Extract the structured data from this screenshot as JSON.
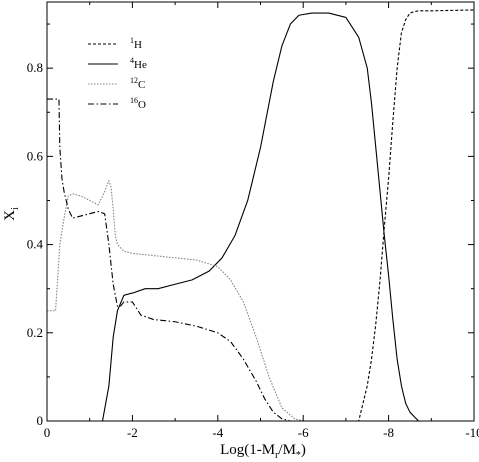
{
  "chart_data": {
    "type": "line",
    "xlabel": "Log(1-M_r/M_*)",
    "ylabel": "X_i",
    "xlim": [
      0,
      -10
    ],
    "ylim": [
      0,
      0.95
    ],
    "x_ticks": [
      0,
      -2,
      -4,
      -6,
      -8,
      -10
    ],
    "x_tick_labels": [
      "0",
      "-2",
      "-4",
      "-6",
      "-8",
      "-10"
    ],
    "y_ticks": [
      0,
      0.2,
      0.4,
      0.6,
      0.8
    ],
    "y_tick_labels": [
      "0",
      "0.2",
      "0.4",
      "0.6",
      "0.8"
    ],
    "grid": false,
    "legend_position": "top-left",
    "series": [
      {
        "name": "1H",
        "name_sup": "1",
        "name_base": "H",
        "color": "#000000",
        "dash": "3,2",
        "x": [
          0,
          -7.3,
          -7.5,
          -7.6,
          -7.7,
          -7.8,
          -7.9,
          -8.0,
          -8.1,
          -8.2,
          -8.3,
          -8.4,
          -8.5,
          -8.6,
          -8.7,
          -9.0,
          -10.0
        ],
        "y": [
          0,
          0.0,
          0.08,
          0.14,
          0.22,
          0.32,
          0.44,
          0.55,
          0.68,
          0.8,
          0.88,
          0.91,
          0.925,
          0.928,
          0.93,
          0.93,
          0.932
        ]
      },
      {
        "name": "4He",
        "name_sup": "4",
        "name_base": "He",
        "color": "#000000",
        "dash": "",
        "x": [
          -1.3,
          -1.45,
          -1.55,
          -1.65,
          -1.8,
          -2.0,
          -2.3,
          -2.6,
          -3.0,
          -3.4,
          -3.8,
          -4.1,
          -4.4,
          -4.7,
          -5.0,
          -5.3,
          -5.5,
          -5.7,
          -5.9,
          -6.2,
          -6.6,
          -7.0,
          -7.3,
          -7.5,
          -7.6,
          -7.7,
          -7.8,
          -7.9,
          -8.0,
          -8.1,
          -8.2,
          -8.3,
          -8.4,
          -8.5,
          -8.6,
          -8.7
        ],
        "y": [
          0,
          0.08,
          0.19,
          0.25,
          0.285,
          0.29,
          0.3,
          0.3,
          0.31,
          0.32,
          0.34,
          0.37,
          0.42,
          0.5,
          0.62,
          0.77,
          0.85,
          0.9,
          0.92,
          0.925,
          0.925,
          0.915,
          0.87,
          0.8,
          0.72,
          0.62,
          0.52,
          0.42,
          0.33,
          0.23,
          0.14,
          0.08,
          0.04,
          0.02,
          0.01,
          0
        ]
      },
      {
        "name": "12C",
        "name_sup": "12",
        "name_base": "C",
        "color": "#888888",
        "dash": "1.6,1.4",
        "x": [
          0,
          -0.2,
          -0.3,
          -0.4,
          -0.5,
          -0.6,
          -0.8,
          -1.0,
          -1.2,
          -1.35,
          -1.45,
          -1.5,
          -1.55,
          -1.6,
          -1.65,
          -1.8,
          -2.0,
          -2.5,
          -3.0,
          -3.5,
          -4.0,
          -4.3,
          -4.6,
          -4.9,
          -5.2,
          -5.5,
          -5.8,
          -6.0,
          -6.5
        ],
        "y": [
          0.25,
          0.25,
          0.4,
          0.46,
          0.51,
          0.515,
          0.51,
          0.5,
          0.49,
          0.52,
          0.545,
          0.53,
          0.48,
          0.42,
          0.4,
          0.385,
          0.38,
          0.375,
          0.37,
          0.365,
          0.35,
          0.32,
          0.27,
          0.19,
          0.1,
          0.03,
          0.005,
          0,
          0
        ]
      },
      {
        "name": "16O",
        "name_sup": "16",
        "name_base": "O",
        "color": "#000000",
        "dash": "6,2.5,1.5,2.5",
        "x": [
          0,
          -0.28,
          -0.3,
          -0.35,
          -0.4,
          -0.5,
          -0.6,
          -0.8,
          -1.0,
          -1.2,
          -1.35,
          -1.45,
          -1.55,
          -1.65,
          -1.72,
          -1.8,
          -2.0,
          -2.2,
          -2.5,
          -3.0,
          -3.5,
          -4.0,
          -4.3,
          -4.6,
          -4.9,
          -5.1,
          -5.3,
          -5.5,
          -5.7,
          -6.0
        ],
        "y": [
          0.73,
          0.73,
          0.62,
          0.55,
          0.52,
          0.48,
          0.46,
          0.465,
          0.47,
          0.475,
          0.47,
          0.4,
          0.31,
          0.26,
          0.26,
          0.27,
          0.27,
          0.24,
          0.23,
          0.225,
          0.215,
          0.2,
          0.18,
          0.14,
          0.09,
          0.05,
          0.02,
          0.005,
          0,
          0
        ]
      }
    ]
  }
}
